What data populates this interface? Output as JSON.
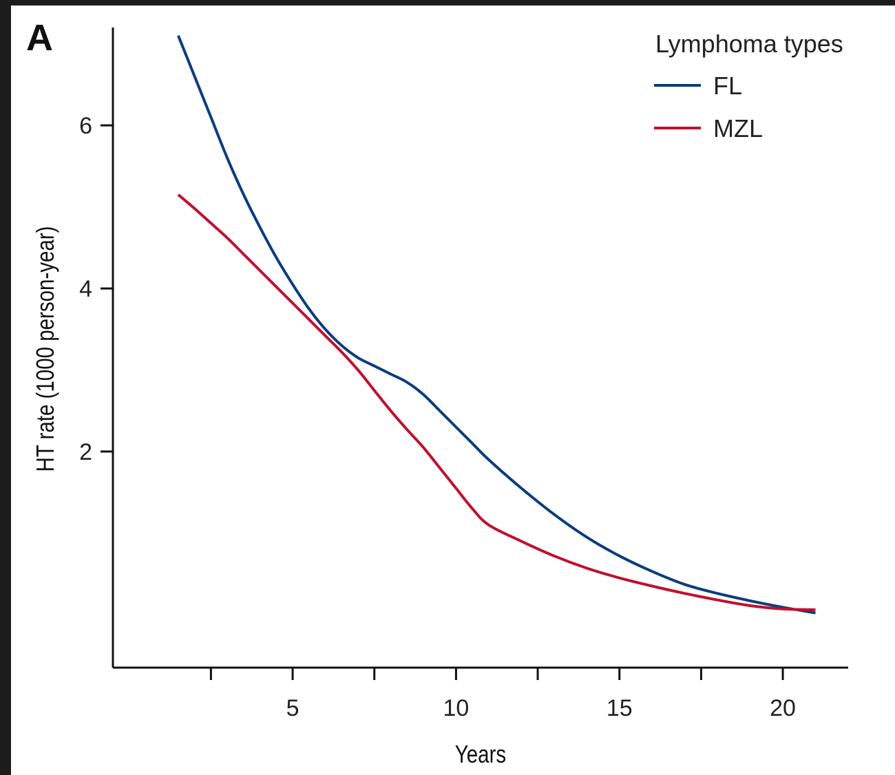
{
  "chart_data": {
    "type": "line",
    "panel_label": "A",
    "title": "",
    "xlabel": "Years",
    "ylabel": "HT rate (1000 person-year)",
    "xlim": [
      -0.5,
      22
    ],
    "ylim": [
      -0.65,
      7.2
    ],
    "x_ticks": [
      2.5,
      5,
      7.5,
      10,
      12.5,
      15,
      17.5,
      20
    ],
    "x_tick_labels": [
      "",
      "5",
      "",
      "10",
      "",
      "15",
      "",
      "20"
    ],
    "y_ticks": [
      2,
      4,
      6
    ],
    "y_tick_labels": [
      "2",
      "4",
      "6"
    ],
    "legend": {
      "title": "Lymphoma types",
      "position": "top-right"
    },
    "series": [
      {
        "name": "FL",
        "color": "#0b3d7a",
        "x": [
          1.5,
          2,
          2.5,
          3,
          3.5,
          4,
          4.5,
          5,
          5.5,
          6,
          6.5,
          7,
          7.5,
          8,
          8.5,
          9,
          9.5,
          10,
          10.5,
          11,
          12,
          13,
          14,
          15,
          16,
          17,
          18,
          19,
          20,
          21
        ],
        "y": [
          7.1,
          6.6,
          6.1,
          5.6,
          5.15,
          4.75,
          4.38,
          4.05,
          3.75,
          3.5,
          3.3,
          3.15,
          3.05,
          2.95,
          2.85,
          2.7,
          2.5,
          2.3,
          2.1,
          1.9,
          1.55,
          1.23,
          0.95,
          0.72,
          0.53,
          0.37,
          0.26,
          0.17,
          0.09,
          0.02
        ]
      },
      {
        "name": "MZL",
        "color": "#c0102d",
        "x": [
          1.5,
          2,
          2.5,
          3,
          3.5,
          4,
          4.5,
          5,
          5.5,
          6,
          6.5,
          7,
          7.5,
          8,
          8.5,
          9,
          9.5,
          10,
          10.5,
          11,
          12,
          13,
          14,
          15,
          16,
          17,
          18,
          19,
          20,
          21
        ],
        "y": [
          5.15,
          4.98,
          4.8,
          4.62,
          4.42,
          4.22,
          4.02,
          3.82,
          3.62,
          3.42,
          3.22,
          3.0,
          2.75,
          2.5,
          2.27,
          2.05,
          1.8,
          1.55,
          1.3,
          1.1,
          0.9,
          0.72,
          0.57,
          0.45,
          0.35,
          0.26,
          0.18,
          0.11,
          0.07,
          0.06
        ]
      }
    ]
  }
}
